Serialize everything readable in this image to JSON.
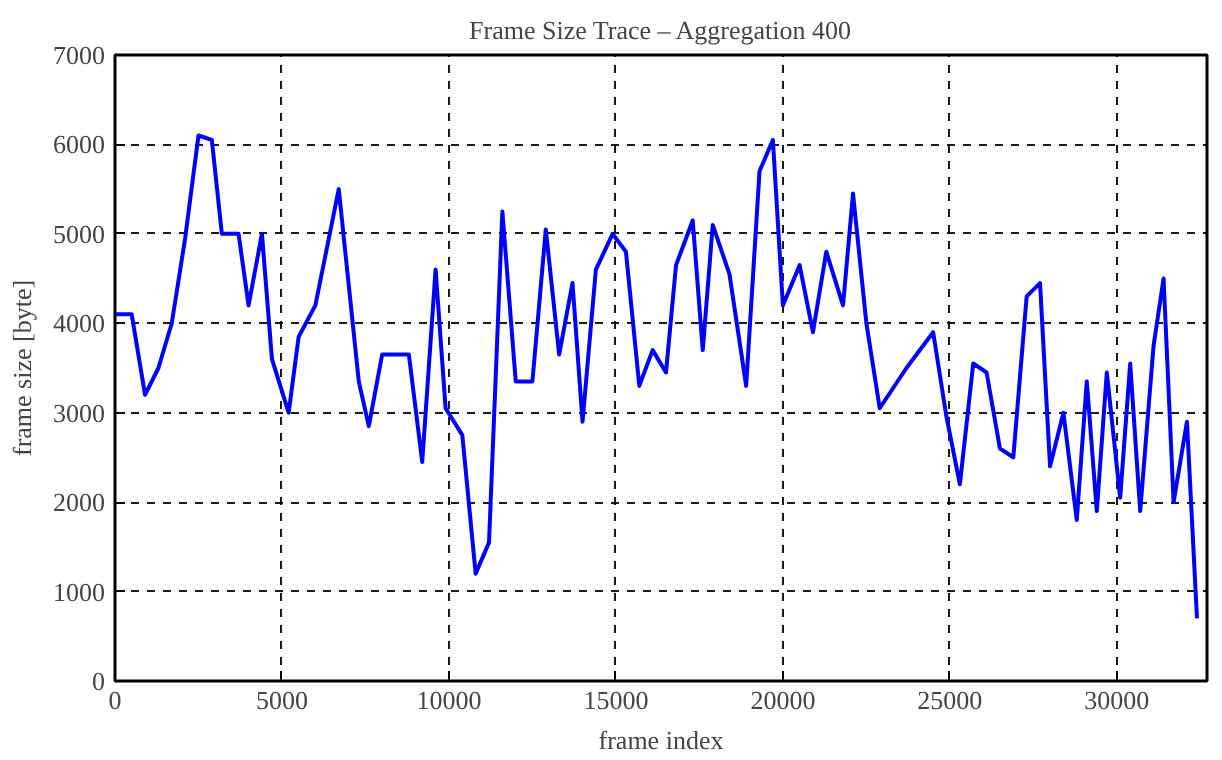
{
  "chart_data": {
    "type": "line",
    "title": "Frame Size Trace – Aggregation 400",
    "xlabel": "frame index",
    "ylabel": "frame size [byte]",
    "x": [
      0,
      500,
      900,
      1300,
      1700,
      2100,
      2500,
      2900,
      3200,
      3700,
      4000,
      4400,
      4700,
      5200,
      5500,
      6000,
      6700,
      7300,
      7600,
      8000,
      8800,
      9200,
      9600,
      9900,
      10400,
      10800,
      11200,
      11600,
      12000,
      12500,
      12900,
      13300,
      13700,
      14000,
      14400,
      14900,
      15300,
      15700,
      16100,
      16500,
      16800,
      17300,
      17600,
      17900,
      18400,
      18900,
      19300,
      19700,
      20000,
      20500,
      20900,
      21300,
      21800,
      22100,
      22500,
      22900,
      23700,
      24500,
      24900,
      25300,
      25700,
      26100,
      26500,
      26900,
      27300,
      27700,
      28000,
      28400,
      28800,
      29100,
      29400,
      29700,
      30100,
      30400,
      30700,
      31100,
      31400,
      31700,
      32100,
      32400
    ],
    "series": [
      {
        "color": "#0000ff",
        "values": [
          4100,
          4100,
          3200,
          3500,
          4000,
          4950,
          6100,
          6050,
          5000,
          5000,
          4200,
          5000,
          3600,
          3000,
          3850,
          4200,
          5500,
          3350,
          2850,
          3650,
          3650,
          2450,
          4600,
          3050,
          2750,
          1200,
          1550,
          5250,
          3350,
          3350,
          5050,
          3650,
          4450,
          2900,
          4600,
          5000,
          4800,
          3300,
          3700,
          3450,
          4650,
          5150,
          3700,
          5100,
          4550,
          3300,
          5700,
          6050,
          4200,
          4650,
          3900,
          4800,
          4200,
          5450,
          4000,
          3050,
          3500,
          3900,
          2950,
          2200,
          3550,
          3450,
          2600,
          2500,
          4300,
          4450,
          2400,
          3000,
          1800,
          3350,
          1900,
          3450,
          2050,
          3550,
          1900,
          3750,
          4500,
          2000,
          2900,
          700
        ]
      }
    ],
    "xlim": [
      0,
      32700
    ],
    "ylim": [
      0,
      7000
    ],
    "xticks": [
      0,
      5000,
      10000,
      15000,
      20000,
      25000,
      30000
    ],
    "yticks": [
      0,
      1000,
      2000,
      3000,
      4000,
      5000,
      6000,
      7000
    ],
    "grid": true,
    "line_style": "solid",
    "marker": "none"
  }
}
